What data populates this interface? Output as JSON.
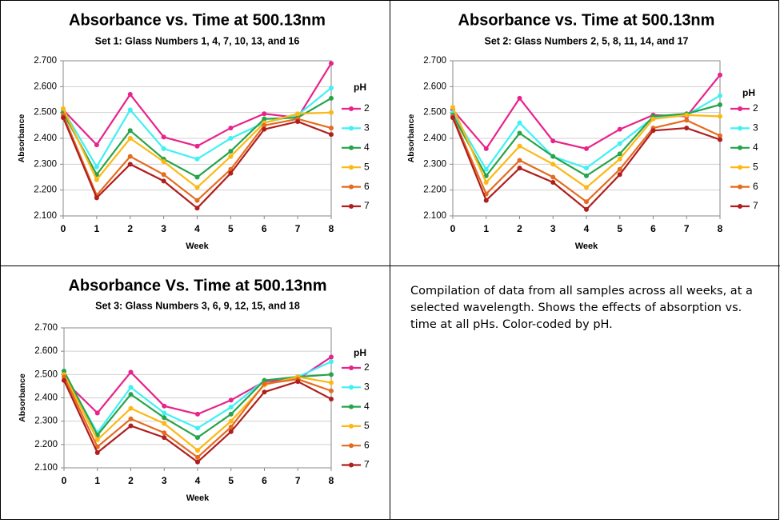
{
  "chart_data": [
    {
      "type": "line",
      "title": "Absorbance vs. Time at 500.13nm",
      "subtitle": "Set 1: Glass Numbers 1, 4, 7, 10, 13, and 16",
      "x_label": "Week",
      "y_label": "Absorbance",
      "legend_title": "pH",
      "grid": true,
      "x": [
        0,
        1,
        2,
        3,
        4,
        5,
        6,
        7,
        8
      ],
      "xlim": [
        0,
        8
      ],
      "xticks": [
        0,
        1,
        2,
        3,
        4,
        5,
        6,
        7,
        8
      ],
      "ylim": [
        2.1,
        2.7
      ],
      "yticks": [
        {
          "value": 2.1,
          "label": "2.100"
        },
        {
          "value": 2.2,
          "label": "2.200"
        },
        {
          "value": 2.3,
          "label": "2.300"
        },
        {
          "value": 2.4,
          "label": "2.400"
        },
        {
          "value": 2.5,
          "label": "2.500"
        },
        {
          "value": 2.6,
          "label": "2.600"
        },
        {
          "value": 2.7,
          "label": "2.700"
        }
      ],
      "series": [
        {
          "name": "2",
          "color": "#e8238c",
          "values": [
            2.51,
            2.375,
            2.57,
            2.405,
            2.37,
            2.44,
            2.495,
            2.48,
            2.69
          ]
        },
        {
          "name": "3",
          "color": "#3ff0f5",
          "values": [
            2.51,
            2.29,
            2.51,
            2.36,
            2.32,
            2.4,
            2.46,
            2.49,
            2.595
          ]
        },
        {
          "name": "4",
          "color": "#27a44a",
          "values": [
            2.5,
            2.26,
            2.43,
            2.32,
            2.25,
            2.35,
            2.475,
            2.48,
            2.555
          ]
        },
        {
          "name": "5",
          "color": "#fdb813",
          "values": [
            2.515,
            2.24,
            2.4,
            2.31,
            2.21,
            2.33,
            2.46,
            2.495,
            2.5
          ]
        },
        {
          "name": "6",
          "color": "#e46c1f",
          "values": [
            2.49,
            2.18,
            2.33,
            2.26,
            2.16,
            2.28,
            2.45,
            2.475,
            2.44
          ]
        },
        {
          "name": "7",
          "color": "#b01e1e",
          "values": [
            2.48,
            2.17,
            2.3,
            2.235,
            2.13,
            2.265,
            2.435,
            2.465,
            2.415
          ]
        }
      ]
    },
    {
      "type": "line",
      "title": "Absorbance vs. Time at 500.13nm",
      "subtitle": "Set 2: Glass Numbers 2, 5, 8, 11, 14, and 17",
      "x_label": "Week",
      "y_label": "Absorbance",
      "legend_title": "pH",
      "grid": true,
      "x": [
        0,
        1,
        2,
        3,
        4,
        5,
        6,
        7,
        8
      ],
      "xlim": [
        0,
        8
      ],
      "xticks": [
        0,
        1,
        2,
        3,
        4,
        5,
        6,
        7,
        8
      ],
      "ylim": [
        2.1,
        2.7
      ],
      "yticks": [
        {
          "value": 2.1,
          "label": "2.100"
        },
        {
          "value": 2.2,
          "label": "2.200"
        },
        {
          "value": 2.3,
          "label": "2.300"
        },
        {
          "value": 2.4,
          "label": "2.400"
        },
        {
          "value": 2.5,
          "label": "2.500"
        },
        {
          "value": 2.6,
          "label": "2.600"
        },
        {
          "value": 2.7,
          "label": "2.700"
        }
      ],
      "series": [
        {
          "name": "2",
          "color": "#e8238c",
          "values": [
            2.51,
            2.36,
            2.555,
            2.39,
            2.36,
            2.435,
            2.49,
            2.485,
            2.645
          ]
        },
        {
          "name": "3",
          "color": "#3ff0f5",
          "values": [
            2.5,
            2.28,
            2.46,
            2.33,
            2.285,
            2.38,
            2.48,
            2.49,
            2.565
          ]
        },
        {
          "name": "4",
          "color": "#27a44a",
          "values": [
            2.49,
            2.255,
            2.42,
            2.33,
            2.255,
            2.34,
            2.485,
            2.495,
            2.53
          ]
        },
        {
          "name": "5",
          "color": "#fdb813",
          "values": [
            2.52,
            2.23,
            2.37,
            2.3,
            2.21,
            2.32,
            2.475,
            2.49,
            2.485
          ]
        },
        {
          "name": "6",
          "color": "#e46c1f",
          "values": [
            2.485,
            2.185,
            2.315,
            2.25,
            2.155,
            2.28,
            2.44,
            2.47,
            2.41
          ]
        },
        {
          "name": "7",
          "color": "#b01e1e",
          "values": [
            2.48,
            2.16,
            2.285,
            2.23,
            2.125,
            2.26,
            2.43,
            2.44,
            2.395
          ]
        }
      ]
    },
    {
      "type": "line",
      "title": "Absorbance Vs. Time at 500.13nm",
      "subtitle": "Set 3: Glass Numbers 3, 6, 9, 12, 15, and 18",
      "x_label": "Week",
      "y_label": "Absorbance",
      "legend_title": "pH",
      "grid": true,
      "x": [
        0,
        1,
        2,
        3,
        4,
        5,
        6,
        7,
        8
      ],
      "xlim": [
        0,
        8
      ],
      "xticks": [
        0,
        1,
        2,
        3,
        4,
        5,
        6,
        7,
        8
      ],
      "ylim": [
        2.1,
        2.7
      ],
      "yticks": [
        {
          "value": 2.1,
          "label": "2.100"
        },
        {
          "value": 2.2,
          "label": "2.200"
        },
        {
          "value": 2.3,
          "label": "2.300"
        },
        {
          "value": 2.4,
          "label": "2.400"
        },
        {
          "value": 2.5,
          "label": "2.500"
        },
        {
          "value": 2.6,
          "label": "2.600"
        },
        {
          "value": 2.7,
          "label": "2.700"
        }
      ],
      "series": [
        {
          "name": "2",
          "color": "#e8238c",
          "values": [
            2.475,
            2.335,
            2.51,
            2.365,
            2.33,
            2.39,
            2.47,
            2.48,
            2.575
          ]
        },
        {
          "name": "3",
          "color": "#3ff0f5",
          "values": [
            2.505,
            2.25,
            2.445,
            2.335,
            2.27,
            2.36,
            2.475,
            2.49,
            2.555
          ]
        },
        {
          "name": "4",
          "color": "#27a44a",
          "values": [
            2.515,
            2.24,
            2.415,
            2.315,
            2.23,
            2.33,
            2.475,
            2.49,
            2.5
          ]
        },
        {
          "name": "5",
          "color": "#fdb813",
          "values": [
            2.5,
            2.22,
            2.355,
            2.29,
            2.175,
            2.3,
            2.455,
            2.49,
            2.465
          ]
        },
        {
          "name": "6",
          "color": "#e46c1f",
          "values": [
            2.49,
            2.19,
            2.31,
            2.25,
            2.145,
            2.275,
            2.46,
            2.48,
            2.43
          ]
        },
        {
          "name": "7",
          "color": "#b01e1e",
          "values": [
            2.475,
            2.165,
            2.28,
            2.23,
            2.125,
            2.255,
            2.425,
            2.47,
            2.395
          ]
        }
      ]
    }
  ],
  "caption": "Compilation of data from all samples across all weeks, at a selected wavelength.  Shows the effects of absorption vs. time at all pHs.  Color-coded by pH."
}
